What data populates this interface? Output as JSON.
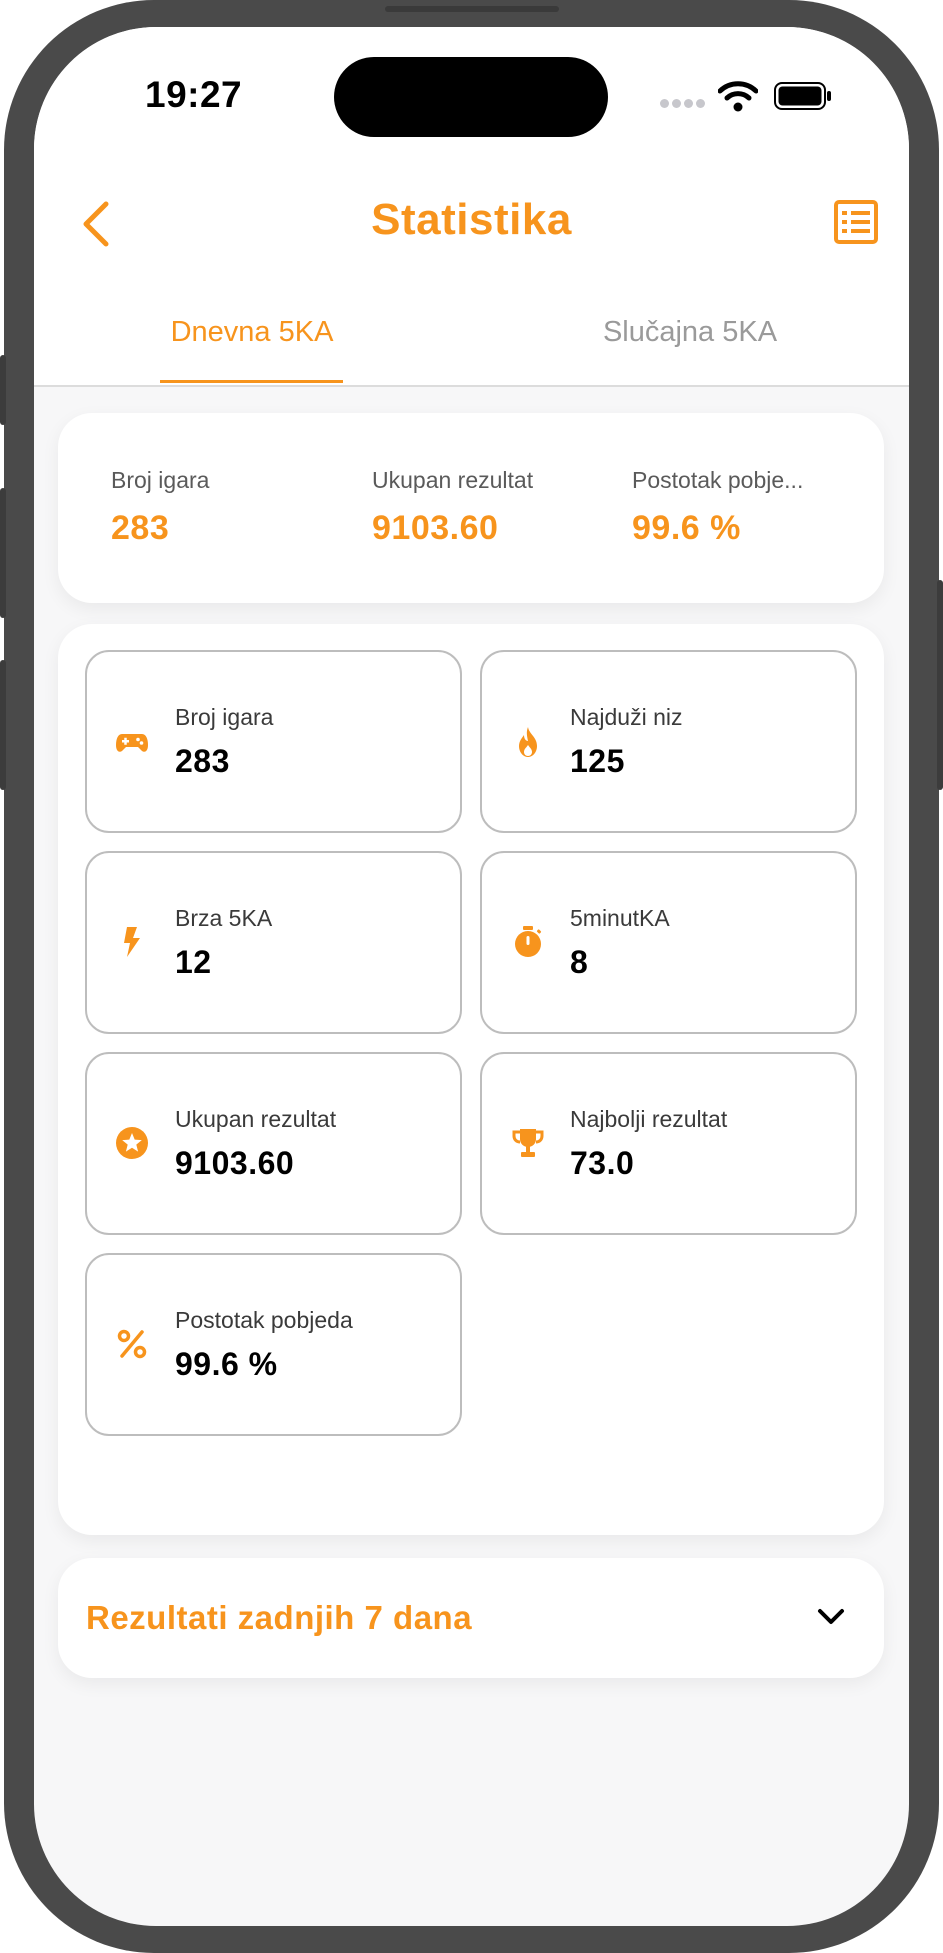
{
  "status_bar": {
    "time": "19:27"
  },
  "header": {
    "title": "Statistika"
  },
  "tabs": [
    {
      "label": "Dnevna 5KA",
      "active": true
    },
    {
      "label": "Slučajna 5KA",
      "active": false
    }
  ],
  "summary": {
    "items": [
      {
        "label": "Broj igara",
        "value": "283"
      },
      {
        "label": "Ukupan rezultat",
        "value": "9103.60"
      },
      {
        "label": "Postotak pobje...",
        "value": "99.6 %"
      }
    ]
  },
  "stats": [
    {
      "icon": "gamepad-icon",
      "label": "Broj igara",
      "value": "283"
    },
    {
      "icon": "flame-icon",
      "label": "Najduži niz",
      "value": "125"
    },
    {
      "icon": "lightning-icon",
      "label": "Brza 5KA",
      "value": "12"
    },
    {
      "icon": "stopwatch-icon",
      "label": "5minutKA",
      "value": "8"
    },
    {
      "icon": "star-badge-icon",
      "label": "Ukupan rezultat",
      "value": "9103.60"
    },
    {
      "icon": "trophy-icon",
      "label": "Najbolji rezultat",
      "value": "73.0"
    },
    {
      "icon": "percent-icon",
      "label": "Postotak pobjeda",
      "value": "99.6 %"
    }
  ],
  "expandable": {
    "label": "Rezultati zadnjih 7 dana"
  },
  "colors": {
    "accent": "#f7941d",
    "text": "#000000",
    "muted": "#9a9a9a",
    "border": "#bdbdbd"
  }
}
